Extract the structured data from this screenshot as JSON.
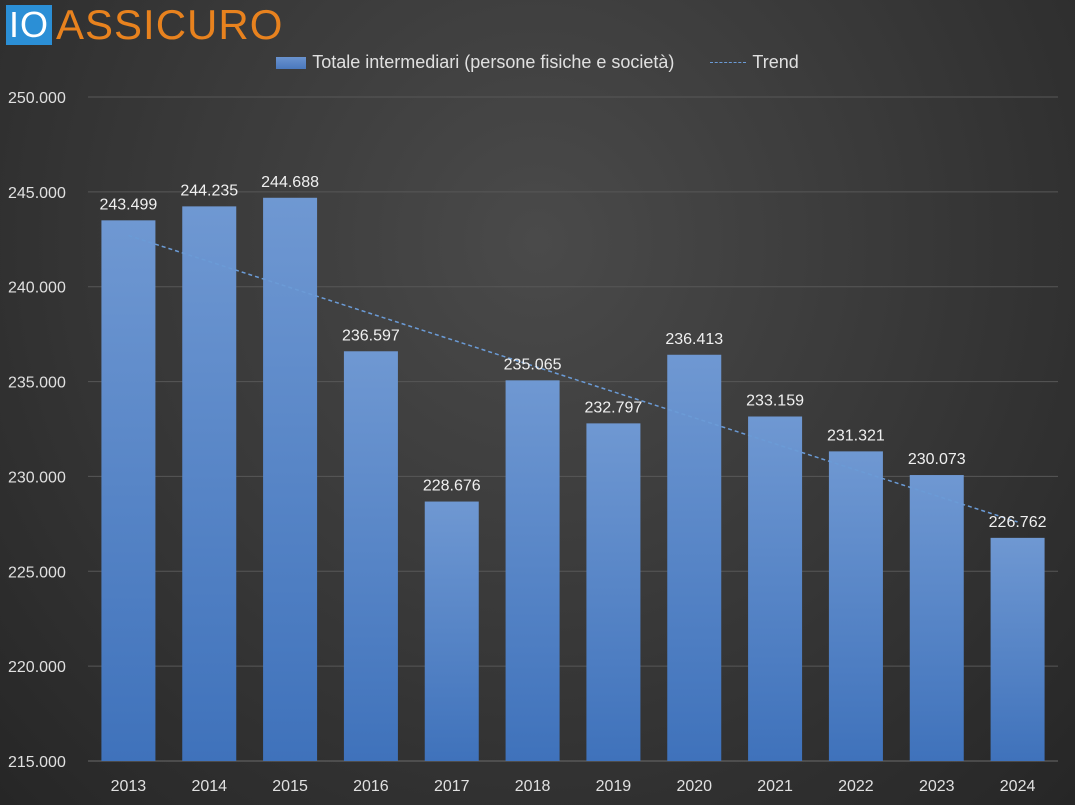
{
  "brand": {
    "logo_box_text": "IO",
    "logo_text": "ASSICURO",
    "box_color": "#2b8fd6",
    "text_color": "#e8821e"
  },
  "legend": {
    "bar_label": "Totale intermediari (persone fisiche e società)",
    "trend_label": "Trend"
  },
  "chart_data": {
    "type": "bar",
    "title": "",
    "xlabel": "",
    "ylabel": "",
    "categories": [
      "2013",
      "2014",
      "2015",
      "2016",
      "2017",
      "2018",
      "2019",
      "2020",
      "2021",
      "2022",
      "2023",
      "2024"
    ],
    "series": [
      {
        "name": "Totale intermediari (persone fisiche e società)",
        "values": [
          243499,
          244235,
          244688,
          236597,
          228676,
          235065,
          232797,
          236413,
          233159,
          231321,
          230073,
          226762
        ],
        "labels": [
          "243.499",
          "244.235",
          "244.688",
          "236.597",
          "228.676",
          "235.065",
          "232.797",
          "236.413",
          "233.159",
          "231.321",
          "230.073",
          "226.762"
        ],
        "color": "#5b89cb"
      },
      {
        "name": "Trend",
        "type": "line",
        "style": "dashed",
        "start": 242700,
        "end": 227600,
        "color": "#6b9bd6"
      }
    ],
    "ylim": [
      215000,
      250000
    ],
    "yticks": [
      215000,
      220000,
      225000,
      230000,
      235000,
      240000,
      245000,
      250000
    ],
    "ytick_labels": [
      "215.000",
      "220.000",
      "225.000",
      "230.000",
      "235.000",
      "240.000",
      "245.000",
      "250.000"
    ],
    "grid": true,
    "legend_position": "top-center"
  }
}
